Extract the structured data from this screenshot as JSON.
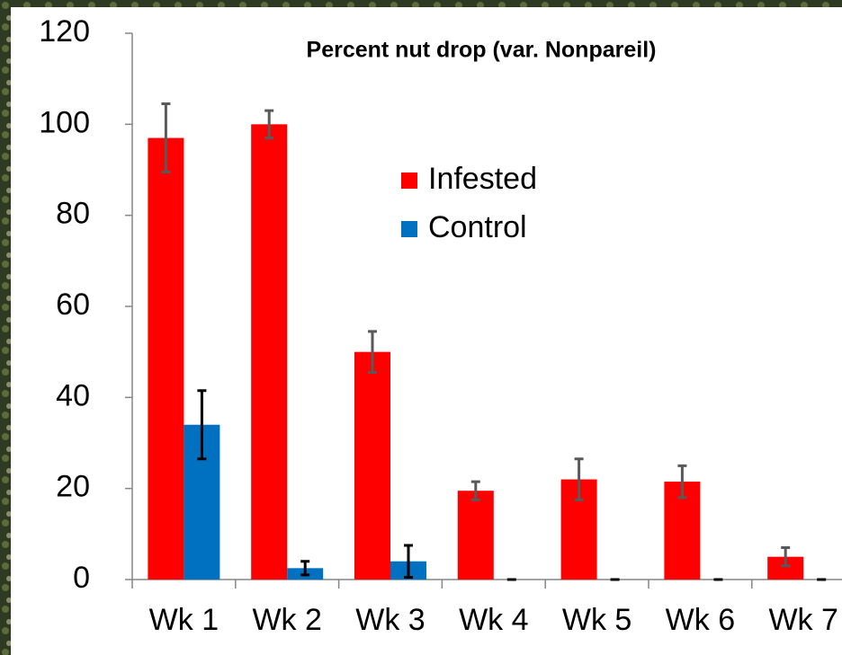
{
  "chart_data": {
    "type": "bar",
    "title": "Percent nut drop (var. Nonpareil)",
    "categories": [
      "Wk 1",
      "Wk 2",
      "Wk 3",
      "Wk 4",
      "Wk 5",
      "Wk 6",
      "Wk 7"
    ],
    "series": [
      {
        "name": "Infested",
        "color": "#ff0000",
        "error_color": "#595959",
        "values": [
          97,
          100,
          50,
          19.5,
          22,
          21.5,
          5
        ],
        "errors": [
          7.5,
          3,
          4.5,
          2,
          4.5,
          3.5,
          2
        ]
      },
      {
        "name": "Control",
        "color": "#0070c0",
        "error_color": "#000000",
        "values": [
          34,
          2.5,
          4,
          0,
          0,
          0,
          0
        ],
        "errors": [
          7.5,
          1.5,
          3.5,
          0,
          0,
          0,
          0
        ]
      }
    ],
    "ylim": [
      0,
      120
    ],
    "yticks": [
      0,
      20,
      40,
      60,
      80,
      100,
      120
    ],
    "grid": false
  }
}
